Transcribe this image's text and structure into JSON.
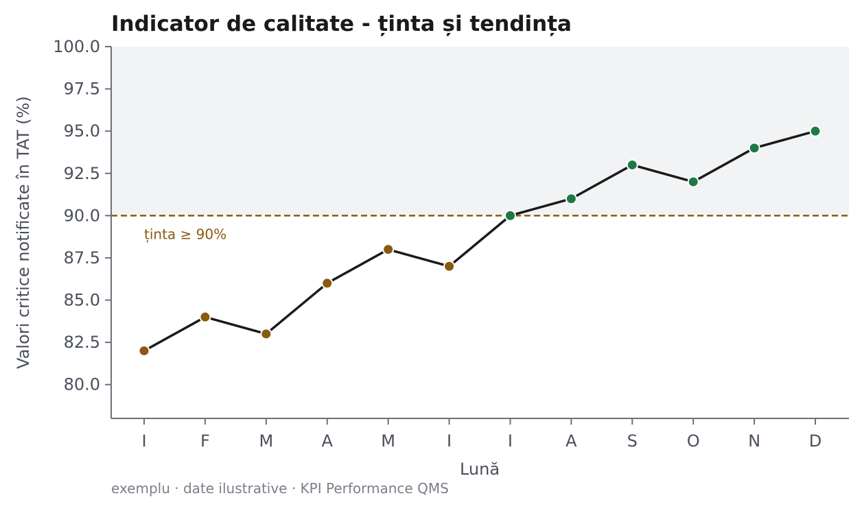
{
  "chart_data": {
    "type": "line",
    "title": "Indicator de calitate - ținta și tendința",
    "xlabel": "Lună",
    "ylabel": "Valori critice notificate în TAT (%)",
    "categories": [
      "I",
      "F",
      "M",
      "A",
      "M",
      "I",
      "I",
      "A",
      "S",
      "O",
      "N",
      "D"
    ],
    "series": [
      {
        "values": [
          82,
          84,
          83,
          86,
          88,
          87,
          90,
          91,
          93,
          92,
          94,
          95
        ]
      }
    ],
    "ylim": [
      78,
      100
    ],
    "yticks": [
      "80.0",
      "82.5",
      "85.0",
      "87.5",
      "90.0",
      "92.5",
      "95.0",
      "97.5",
      "100.0"
    ],
    "target": {
      "value": 90,
      "label": "ținta ≥ 90%"
    },
    "grid": false,
    "footnote": "exemplu · date ilustrative · KPI Performance QMS",
    "colors": {
      "line": "#1a1a1a",
      "below_target": "#8a5a0e",
      "at_or_above_target": "#1e7a45",
      "target_line": "#8a5a0e",
      "target_zone": "#f2f3f5",
      "axis": "#6b7079"
    }
  }
}
